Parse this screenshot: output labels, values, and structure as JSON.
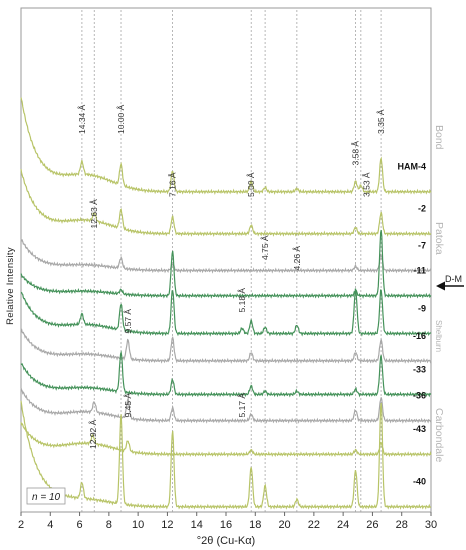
{
  "chart_data": {
    "type": "line",
    "xlabel": "°2θ (Cu-Kα)",
    "ylabel": "Relative Intensity",
    "xlim": [
      2,
      30
    ],
    "xticks": [
      2,
      4,
      6,
      8,
      10,
      12,
      14,
      16,
      18,
      20,
      22,
      24,
      26,
      28,
      30
    ],
    "note": "n = 10",
    "colors": {
      "yellow": "#b8c468",
      "green": "#45925a",
      "gray": "#a8a8a8",
      "frame": "#999999",
      "guide": "#9a9a9a"
    },
    "peak_guides_2theta": [
      6.16,
      7.0,
      8.83,
      12.35,
      17.72,
      18.67,
      20.84,
      24.85,
      25.21,
      26.59
    ],
    "peak_labels": [
      {
        "text": "14.34 Å",
        "x": 6.16,
        "y": 36
      },
      {
        "text": "10.00 Å",
        "x": 8.83,
        "y": 36
      },
      {
        "text": "7.16 Å",
        "x": 12.35,
        "y": 30
      },
      {
        "text": "5.00 Å",
        "x": 17.72,
        "y": 30
      },
      {
        "text": "4.75 Å",
        "x": 18.67,
        "y": 24
      },
      {
        "text": "4.26 Å",
        "x": 20.84,
        "y": 23
      },
      {
        "text": "3.58 Å",
        "x": 24.85,
        "y": 33
      },
      {
        "text": "3.53 Å",
        "x": 25.6,
        "y": 30
      },
      {
        "text": "3.35 Å",
        "x": 26.59,
        "y": 36
      },
      {
        "text": "12.63 Å",
        "x": 7.0,
        "y": 27
      },
      {
        "text": "5.18 Å",
        "x": 17.1,
        "y": 19
      },
      {
        "text": "9.57 Å",
        "x": 9.3,
        "y": 17
      },
      {
        "text": "9.45 Å",
        "x": 9.3,
        "y": 9
      },
      {
        "text": "12.92 Å",
        "x": 6.9,
        "y": 6
      },
      {
        "text": "5.17 Å",
        "x": 17.1,
        "y": 9
      }
    ],
    "series": [
      {
        "name": "HAM-4",
        "group": "Bond",
        "color": "yellow",
        "baseline": 30.5,
        "rise": 9,
        "hump": 1.5,
        "peaks": [
          [
            6.16,
            1.2
          ],
          [
            8.83,
            2.0
          ],
          [
            12.35,
            2.0
          ],
          [
            17.72,
            1.0
          ],
          [
            18.67,
            0.4
          ],
          [
            20.84,
            0.3
          ],
          [
            24.85,
            1.0
          ],
          [
            25.21,
            0.6
          ],
          [
            26.59,
            3.2
          ]
        ]
      },
      {
        "name": "-2",
        "group": "Bond",
        "color": "yellow",
        "baseline": 26.5,
        "rise": 6,
        "hump": 1.2,
        "peaks": [
          [
            7.0,
            0.8
          ],
          [
            8.83,
            1.8
          ],
          [
            12.35,
            1.6
          ],
          [
            17.72,
            0.8
          ],
          [
            24.85,
            0.6
          ],
          [
            26.59,
            2.0
          ]
        ]
      },
      {
        "name": "-7",
        "group": "Bond",
        "color": "gray",
        "baseline": 23.0,
        "rise": 3,
        "hump": 0.5,
        "peaks": [
          [
            8.83,
            1.0
          ],
          [
            12.35,
            0.6
          ],
          [
            24.85,
            0.4
          ],
          [
            26.59,
            1.5
          ]
        ]
      },
      {
        "name": "-11",
        "group": "Patoka",
        "color": "green",
        "baseline": 20.6,
        "rise": 2,
        "hump": 0.4,
        "peaks": [
          [
            8.83,
            0.4
          ],
          [
            12.35,
            4.2
          ],
          [
            24.85,
            0.4
          ],
          [
            26.59,
            6.3
          ]
        ]
      },
      {
        "name": "-9",
        "group": "Patoka",
        "color": "green",
        "baseline": 17.0,
        "rise": 4,
        "hump": 0.8,
        "peaks": [
          [
            6.16,
            1.0
          ],
          [
            8.83,
            2.5
          ],
          [
            12.35,
            4.2
          ],
          [
            17.1,
            0.5
          ],
          [
            17.72,
            1.2
          ],
          [
            18.67,
            0.6
          ],
          [
            20.84,
            0.8
          ],
          [
            24.85,
            4.2
          ],
          [
            26.59,
            4.2
          ]
        ]
      },
      {
        "name": "-16",
        "group": "Patoka",
        "color": "gray",
        "baseline": 14.4,
        "rise": 3,
        "hump": 0.6,
        "peaks": [
          [
            9.3,
            1.8
          ],
          [
            12.35,
            2.2
          ],
          [
            17.72,
            0.8
          ],
          [
            24.85,
            0.8
          ],
          [
            26.59,
            2.0
          ]
        ]
      },
      {
        "name": "-33",
        "group": "Shelburn",
        "color": "green",
        "baseline": 11.2,
        "rise": 3,
        "hump": 0.6,
        "peaks": [
          [
            8.83,
            3.8
          ],
          [
            12.35,
            1.4
          ],
          [
            17.72,
            0.8
          ],
          [
            18.67,
            0.3
          ],
          [
            20.84,
            0.3
          ],
          [
            24.85,
            0.5
          ],
          [
            26.59,
            3.7
          ]
        ]
      },
      {
        "name": "-36",
        "group": "Shelburn",
        "color": "gray",
        "baseline": 8.7,
        "rise": 3,
        "hump": 0.8,
        "peaks": [
          [
            7.0,
            1.0
          ],
          [
            9.3,
            1.8
          ],
          [
            12.35,
            1.2
          ],
          [
            17.72,
            0.6
          ],
          [
            24.85,
            1.0
          ],
          [
            26.59,
            2.2
          ]
        ]
      },
      {
        "name": "-43",
        "group": "Carbondale",
        "color": "yellow",
        "baseline": 5.5,
        "rise": 3,
        "hump": 1.0,
        "peaks": [
          [
            6.9,
            0.8
          ],
          [
            9.3,
            1.0
          ],
          [
            17.72,
            0.4
          ],
          [
            24.85,
            0.4
          ],
          [
            26.59,
            1.1
          ]
        ]
      },
      {
        "name": "-40",
        "group": "Carbondale",
        "color": "yellow",
        "baseline": 0.5,
        "rise": 10,
        "hump": 0.6,
        "peaks": [
          [
            6.16,
            1.5
          ],
          [
            8.83,
            8.5
          ],
          [
            12.35,
            7.2
          ],
          [
            17.72,
            3.8
          ],
          [
            18.67,
            2.0
          ],
          [
            20.84,
            0.7
          ],
          [
            24.85,
            3.5
          ],
          [
            26.59,
            10.0
          ]
        ]
      }
    ],
    "groups": [
      "Bond",
      "Patoka",
      "Shelburn",
      "Carbondale"
    ],
    "marker": {
      "label": "D-M",
      "between": [
        "-16",
        "-33"
      ]
    }
  }
}
